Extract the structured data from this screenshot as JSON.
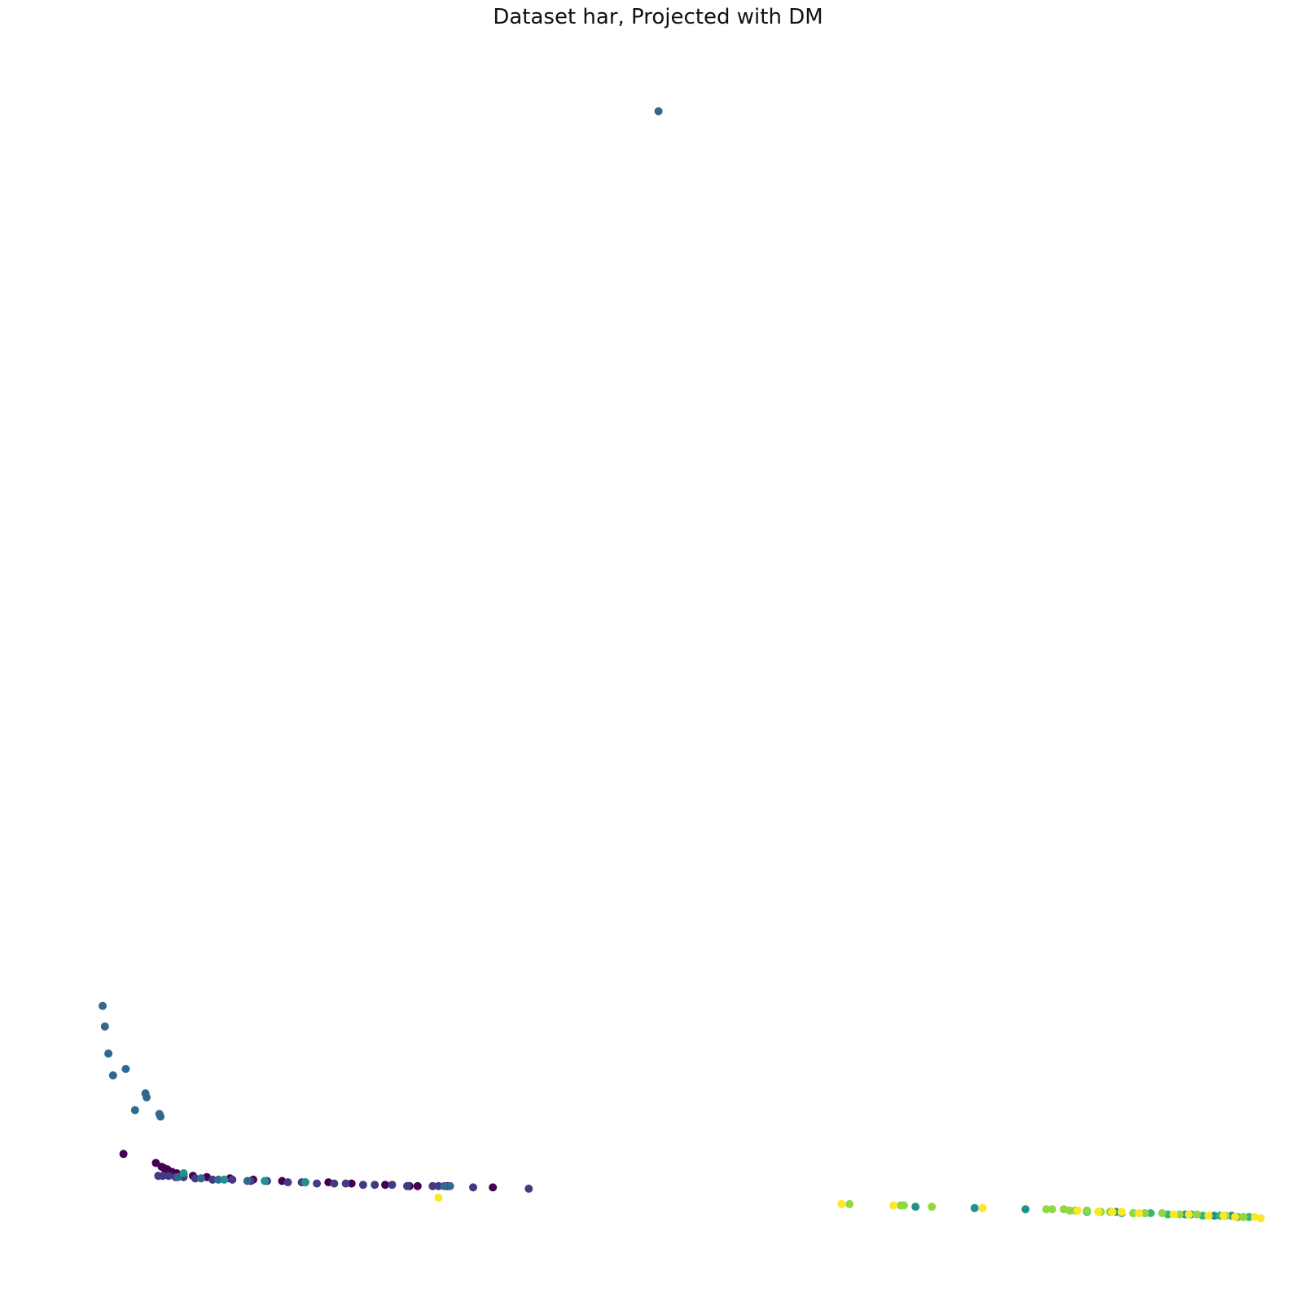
{
  "chart_data": {
    "type": "scatter",
    "title": "Dataset har, Projected with DM",
    "xlabel": "",
    "ylabel": "",
    "axes_visible": false,
    "grid": false,
    "legend": "none",
    "xlim": [
      0,
      1
    ],
    "ylim": [
      0,
      1
    ],
    "class_colors": [
      "#440154",
      "#443983",
      "#31688e",
      "#21918c",
      "#35b779",
      "#90d743",
      "#fde725"
    ],
    "series": [
      {
        "class": 0,
        "points": [
          [
            0.018,
            0.115
          ],
          [
            0.046,
            0.108
          ],
          [
            0.051,
            0.105
          ],
          [
            0.053,
            0.104
          ],
          [
            0.056,
            0.103
          ],
          [
            0.06,
            0.101
          ],
          [
            0.064,
            0.1
          ],
          [
            0.07,
            0.099
          ],
          [
            0.078,
            0.098
          ],
          [
            0.09,
            0.097
          ],
          [
            0.11,
            0.096
          ],
          [
            0.13,
            0.095
          ],
          [
            0.155,
            0.094
          ],
          [
            0.175,
            0.093
          ],
          [
            0.195,
            0.093
          ],
          [
            0.215,
            0.092
          ],
          [
            0.244,
            0.091
          ],
          [
            0.265,
            0.09
          ],
          [
            0.272,
            0.09
          ],
          [
            0.298,
            0.09
          ],
          [
            0.337,
            0.089
          ]
        ]
      },
      {
        "class": 1,
        "points": [
          [
            0.048,
            0.098
          ],
          [
            0.052,
            0.098
          ],
          [
            0.057,
            0.098
          ],
          [
            0.063,
            0.097
          ],
          [
            0.07,
            0.097
          ],
          [
            0.08,
            0.096
          ],
          [
            0.095,
            0.095
          ],
          [
            0.112,
            0.095
          ],
          [
            0.128,
            0.094
          ],
          [
            0.142,
            0.094
          ],
          [
            0.16,
            0.093
          ],
          [
            0.172,
            0.093
          ],
          [
            0.185,
            0.092
          ],
          [
            0.2,
            0.092
          ],
          [
            0.21,
            0.092
          ],
          [
            0.225,
            0.091
          ],
          [
            0.235,
            0.091
          ],
          [
            0.25,
            0.091
          ],
          [
            0.263,
            0.09
          ],
          [
            0.285,
            0.09
          ],
          [
            0.29,
            0.09
          ],
          [
            0.32,
            0.089
          ],
          [
            0.368,
            0.088
          ]
        ]
      },
      {
        "class": 2,
        "points": [
          [
            0.0,
            0.23
          ],
          [
            0.002,
            0.214
          ],
          [
            0.005,
            0.193
          ],
          [
            0.009,
            0.176
          ],
          [
            0.02,
            0.181
          ],
          [
            0.037,
            0.162
          ],
          [
            0.038,
            0.159
          ],
          [
            0.028,
            0.149
          ],
          [
            0.049,
            0.146
          ],
          [
            0.05,
            0.144
          ],
          [
            0.48,
            0.925
          ],
          [
            0.065,
            0.097
          ],
          [
            0.085,
            0.096
          ],
          [
            0.1,
            0.095
          ],
          [
            0.125,
            0.094
          ],
          [
            0.3,
            0.09
          ],
          [
            0.295,
            0.09
          ]
        ]
      },
      {
        "class": 3,
        "points": [
          [
            0.07,
            0.1
          ],
          [
            0.105,
            0.095
          ],
          [
            0.14,
            0.094
          ],
          [
            0.175,
            0.093
          ],
          [
            0.702,
            0.074
          ],
          [
            0.753,
            0.073
          ],
          [
            0.797,
            0.072
          ],
          [
            0.875,
            0.07
          ],
          [
            0.9,
            0.069
          ],
          [
            0.935,
            0.068
          ],
          [
            0.96,
            0.067
          ],
          [
            0.975,
            0.067
          ]
        ]
      },
      {
        "class": 4,
        "points": [
          [
            0.85,
            0.07
          ],
          [
            0.86,
            0.07
          ],
          [
            0.87,
            0.07
          ],
          [
            0.88,
            0.069
          ],
          [
            0.89,
            0.069
          ],
          [
            0.905,
            0.069
          ],
          [
            0.92,
            0.068
          ],
          [
            0.94,
            0.068
          ],
          [
            0.95,
            0.067
          ],
          [
            0.965,
            0.067
          ],
          [
            0.98,
            0.066
          ],
          [
            0.99,
            0.066
          ]
        ]
      },
      {
        "class": 5,
        "points": [
          [
            0.645,
            0.076
          ],
          [
            0.689,
            0.075
          ],
          [
            0.692,
            0.075
          ],
          [
            0.716,
            0.074
          ],
          [
            0.815,
            0.072
          ],
          [
            0.82,
            0.072
          ],
          [
            0.83,
            0.072
          ],
          [
            0.835,
            0.071
          ],
          [
            0.84,
            0.071
          ],
          [
            0.85,
            0.071
          ],
          [
            0.862,
            0.07
          ],
          [
            0.87,
            0.07
          ],
          [
            0.89,
            0.069
          ],
          [
            0.9,
            0.069
          ],
          [
            0.915,
            0.069
          ],
          [
            0.93,
            0.068
          ],
          [
            0.945,
            0.068
          ],
          [
            0.97,
            0.067
          ],
          [
            0.985,
            0.066
          ]
        ]
      },
      {
        "class": 6,
        "points": [
          [
            0.29,
            0.081
          ],
          [
            0.638,
            0.076
          ],
          [
            0.683,
            0.075
          ],
          [
            0.76,
            0.073
          ],
          [
            0.842,
            0.071
          ],
          [
            0.86,
            0.07
          ],
          [
            0.872,
            0.07
          ],
          [
            0.88,
            0.07
          ],
          [
            0.895,
            0.069
          ],
          [
            0.925,
            0.068
          ],
          [
            0.938,
            0.068
          ],
          [
            0.955,
            0.067
          ],
          [
            0.968,
            0.067
          ],
          [
            0.978,
            0.066
          ],
          [
            0.995,
            0.066
          ],
          [
            1.0,
            0.065
          ]
        ]
      }
    ]
  }
}
